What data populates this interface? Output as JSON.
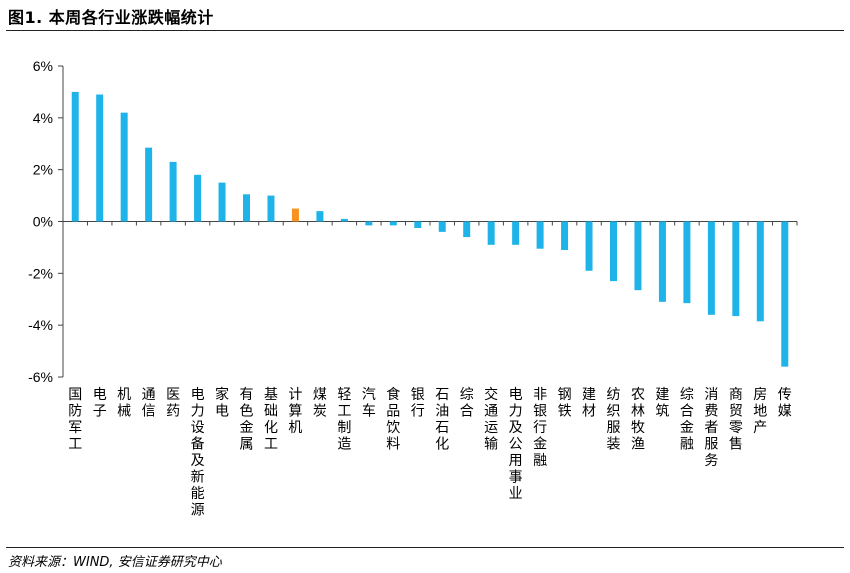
{
  "title": "图1. 本周各行业涨跌幅统计",
  "source": "资料来源：WIND, 安信证券研究中心",
  "colors": {
    "default_bar": "#1fb4e9",
    "highlight_bar": "#f7931e",
    "axis": "#444444"
  },
  "chart_data": {
    "type": "bar",
    "categories": [
      "国防军工",
      "电子",
      "机械",
      "通信",
      "医药",
      "电力设备及新能源",
      "家电",
      "有色金属",
      "基础化工",
      "计算机",
      "煤炭",
      "轻工制造",
      "汽车",
      "食品饮料",
      "银行",
      "石油石化",
      "综合",
      "交通运输",
      "电力及公用事业",
      "非银行金融",
      "钢铁",
      "建材",
      "纺织服装",
      "农林牧渔",
      "建筑",
      "综合金融",
      "消费者服务",
      "商贸零售",
      "房地产",
      "传媒"
    ],
    "values": [
      5.0,
      4.9,
      4.2,
      2.85,
      2.3,
      1.8,
      1.5,
      1.05,
      1.0,
      0.5,
      0.4,
      0.1,
      -0.15,
      -0.15,
      -0.25,
      -0.4,
      -0.6,
      -0.9,
      -0.9,
      -1.05,
      -1.1,
      -1.9,
      -2.3,
      -2.65,
      -3.1,
      -3.15,
      -3.6,
      -3.65,
      -3.85,
      -5.6
    ],
    "highlight_index": 9,
    "yticks": [
      "6%",
      "4%",
      "2%",
      "0%",
      "-2%",
      "-4%",
      "-6%"
    ],
    "ylim": [
      -6,
      6
    ],
    "xlabel": "",
    "ylabel": ""
  }
}
